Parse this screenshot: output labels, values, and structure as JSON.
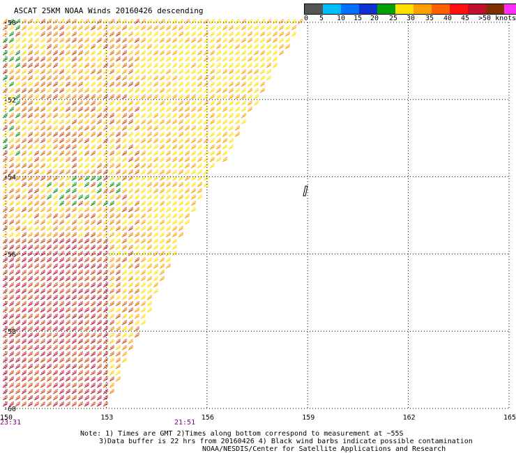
{
  "title": "ASCAT 25KM NOAA Winds 20160426 descending",
  "colorbar": {
    "colors": [
      "#555555",
      "#00bfff",
      "#0070ff",
      "#1030d0",
      "#00a000",
      "#ffe000",
      "#ffa000",
      "#ff6000",
      "#ff1010",
      "#c01030",
      "#803000",
      "#ff30ff",
      "#c000c0",
      "#4000a0"
    ],
    "labels": [
      "0",
      "5",
      "10",
      "15",
      "20",
      "25",
      "30",
      "35",
      "40",
      "45",
      ">50 knots"
    ]
  },
  "map": {
    "lon_min": 150,
    "lon_max": 165,
    "lat_top": -50,
    "lat_bottom": -60,
    "lat_labels": [
      "-50",
      "-52",
      "-54",
      "-56",
      "-58",
      "-60"
    ],
    "lon_labels": [
      "150",
      "153",
      "156",
      "159",
      "162",
      "165"
    ]
  },
  "times": {
    "left": "23:31",
    "mid": "21:51"
  },
  "notes": {
    "line1": "Note: 1) Times are GMT 2)Times along bottom correspond to measurement at ~55S",
    "line2": "3)Data buffer is 22 hrs from 20160426 4) Black wind barbs indicate possible contamination",
    "line3": "NOAA/NESDIS/Center for Satellite Applications and Research"
  }
}
